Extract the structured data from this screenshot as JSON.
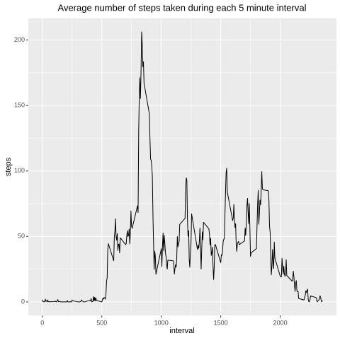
{
  "chart_data": {
    "type": "line",
    "title": "Average number of steps taken during each 5 minute interval",
    "x_label": "interval",
    "y_label": "steps",
    "xlim": [
      -117.75,
      2472.75
    ],
    "ylim": [
      -10.3,
      216.5
    ],
    "xticks": [
      0,
      500,
      1000,
      1500,
      2000
    ],
    "yticks": [
      0,
      50,
      100,
      150,
      200
    ],
    "grid": true,
    "background": "#ebebeb",
    "series": [
      {
        "name": "steps",
        "color": "#000000",
        "x": [
          0,
          5,
          10,
          15,
          20,
          25,
          30,
          35,
          40,
          45,
          50,
          55,
          100,
          105,
          110,
          115,
          120,
          125,
          130,
          135,
          140,
          145,
          150,
          155,
          200,
          205,
          210,
          215,
          220,
          225,
          230,
          235,
          240,
          245,
          250,
          255,
          300,
          305,
          310,
          315,
          320,
          325,
          330,
          335,
          340,
          345,
          350,
          355,
          400,
          405,
          410,
          415,
          420,
          425,
          430,
          435,
          440,
          445,
          450,
          455,
          500,
          505,
          510,
          515,
          520,
          525,
          530,
          535,
          540,
          545,
          550,
          555,
          600,
          605,
          610,
          615,
          620,
          625,
          630,
          635,
          640,
          645,
          650,
          655,
          700,
          705,
          710,
          715,
          720,
          725,
          730,
          735,
          740,
          745,
          750,
          755,
          800,
          805,
          810,
          815,
          820,
          825,
          830,
          835,
          840,
          845,
          850,
          855,
          900,
          905,
          910,
          915,
          920,
          925,
          930,
          935,
          940,
          945,
          950,
          955,
          1000,
          1005,
          1010,
          1015,
          1020,
          1025,
          1030,
          1035,
          1040,
          1045,
          1050,
          1055,
          1100,
          1105,
          1110,
          1115,
          1120,
          1125,
          1130,
          1135,
          1140,
          1145,
          1150,
          1155,
          1200,
          1205,
          1210,
          1215,
          1220,
          1225,
          1230,
          1235,
          1240,
          1245,
          1250,
          1255,
          1300,
          1305,
          1310,
          1315,
          1320,
          1325,
          1330,
          1335,
          1340,
          1345,
          1350,
          1355,
          1400,
          1405,
          1410,
          1415,
          1420,
          1425,
          1430,
          1435,
          1440,
          1445,
          1450,
          1455,
          1500,
          1505,
          1510,
          1515,
          1520,
          1525,
          1530,
          1535,
          1540,
          1545,
          1550,
          1555,
          1600,
          1605,
          1610,
          1615,
          1620,
          1625,
          1630,
          1635,
          1640,
          1645,
          1650,
          1655,
          1700,
          1705,
          1710,
          1715,
          1720,
          1725,
          1730,
          1735,
          1740,
          1745,
          1750,
          1755,
          1800,
          1805,
          1810,
          1815,
          1820,
          1825,
          1830,
          1835,
          1840,
          1845,
          1850,
          1855,
          1900,
          1905,
          1910,
          1915,
          1920,
          1925,
          1930,
          1935,
          1940,
          1945,
          1950,
          1955,
          2000,
          2005,
          2010,
          2015,
          2020,
          2025,
          2030,
          2035,
          2040,
          2045,
          2050,
          2055,
          2100,
          2105,
          2110,
          2115,
          2120,
          2125,
          2130,
          2135,
          2140,
          2145,
          2150,
          2155,
          2200,
          2205,
          2210,
          2215,
          2220,
          2225,
          2230,
          2235,
          2240,
          2245,
          2250,
          2255,
          2300,
          2305,
          2310,
          2315,
          2320,
          2325,
          2330,
          2335,
          2340,
          2345,
          2350,
          2355
        ],
        "values": [
          1.7,
          0.3,
          0.1,
          0.2,
          0.1,
          2.1,
          0.5,
          0.9,
          0,
          1.5,
          0.3,
          0.1,
          0.3,
          0.7,
          0.2,
          0.3,
          0,
          1.1,
          1.8,
          0.2,
          0.2,
          0.4,
          0.3,
          0,
          0,
          0,
          1.1,
          0,
          0,
          0.1,
          0,
          0.2,
          0,
          0,
          1.5,
          0.9,
          0,
          0,
          0,
          0,
          0.2,
          0.6,
          1.6,
          0.6,
          0.5,
          0.1,
          0,
          0,
          1.2,
          0.9,
          2.6,
          0,
          0.3,
          0.4,
          4.1,
          0.7,
          3.5,
          0.8,
          3.1,
          1.1,
          0,
          1.6,
          3.0,
          2.2,
          3.3,
          3.0,
          2.1,
          6.1,
          16.0,
          18.3,
          39.5,
          44.5,
          31.5,
          49.3,
          53.8,
          63.5,
          50.0,
          47.1,
          52.2,
          39.3,
          44.0,
          44.2,
          37.4,
          49.0,
          43.8,
          44.4,
          50.5,
          54.5,
          49.9,
          50.9,
          55.7,
          44.3,
          52.3,
          69.5,
          57.8,
          56.2,
          73.4,
          68.2,
          129.4,
          157.5,
          171.2,
          155.4,
          177.3,
          206.2,
          195.9,
          179.6,
          183.4,
          167.0,
          143.5,
          124.0,
          109.1,
          108.1,
          103.7,
          95.9,
          66.2,
          45.2,
          24.8,
          38.8,
          35.0,
          21.1,
          40.6,
          26.9,
          42.4,
          52.7,
          38.9,
          50.8,
          44.3,
          37.4,
          34.7,
          28.3,
          25.1,
          31.9,
          31.4,
          29.7,
          21.3,
          25.5,
          28.4,
          26.5,
          33.4,
          50.0,
          42.0,
          44.6,
          46.0,
          59.2,
          63.9,
          87.7,
          94.8,
          92.8,
          63.4,
          50.2,
          54.5,
          32.4,
          26.5,
          37.7,
          45.1,
          67.3,
          42.3,
          39.9,
          43.3,
          41.0,
          46.2,
          56.4,
          42.8,
          25.1,
          39.9,
          53.5,
          47.3,
          60.8,
          55.8,
          52.0,
          43.6,
          48.7,
          35.5,
          37.5,
          41.8,
          27.5,
          17.1,
          26.1,
          43.6,
          43.8,
          30.0,
          36.1,
          35.5,
          38.8,
          46.0,
          47.8,
          48.1,
          65.3,
          82.9,
          98.7,
          102.1,
          84.0,
          62.1,
          64.1,
          74.5,
          63.2,
          56.9,
          59.8,
          43.9,
          38.6,
          44.7,
          45.5,
          46.2,
          43.7,
          46.6,
          56.3,
          50.7,
          61.2,
          73.4,
          79.1,
          68.9,
          59.7,
          75.1,
          56.5,
          34.8,
          37.5,
          40.7,
          58.0,
          74.7,
          85.3,
          59.3,
          67.8,
          77.7,
          74.2,
          85.3,
          99.5,
          86.6,
          85.6,
          84.9,
          77.8,
          58.0,
          53.4,
          36.3,
          20.7,
          27.4,
          40.0,
          30.2,
          25.5,
          45.7,
          33.5,
          19.6,
          19.0,
          19.3,
          33.3,
          26.8,
          21.2,
          27.3,
          21.3,
          19.5,
          21.3,
          32.3,
          20.2,
          15.9,
          17.2,
          23.5,
          19.2,
          12.5,
          8.0,
          14.7,
          16.3,
          8.7,
          7.8,
          8.1,
          2.6,
          1.5,
          3.7,
          4.8,
          8.5,
          7.1,
          8.7,
          9.8,
          2.2,
          0.3,
          0.1,
          1.6,
          4.6,
          3.3,
          2.8,
          0,
          0.8,
          1.0,
          1.6,
          2.6,
          4.7,
          3.3,
          0.6,
          0.2,
          1.1
        ]
      }
    ]
  }
}
